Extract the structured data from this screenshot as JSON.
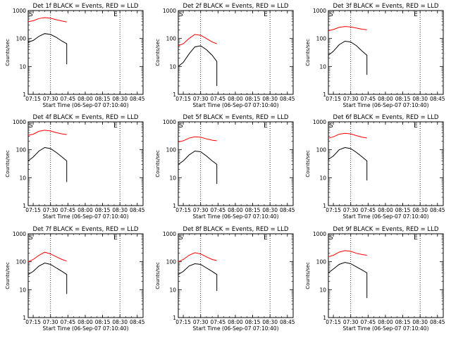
{
  "chart_data": [
    {
      "type": "line",
      "title": "Det 1f BLACK = Events, RED = LLD",
      "markers": [
        "S",
        "E"
      ],
      "xlabel": "Start Time (06-Sep-07 07:10:40)",
      "ylabel": "Counts/sec",
      "x_tick_labels": [
        "07:15",
        "07:30",
        "07:45",
        "08:00",
        "08:15",
        "08:30",
        "08:45"
      ],
      "y_tick_labels": [
        "1",
        "10",
        "100",
        "1000"
      ],
      "yscale": "log",
      "ylim": [
        1,
        1000
      ],
      "xlim": [
        "07:10:40",
        "08:50"
      ],
      "vlines": [
        "07:30",
        "08:30"
      ],
      "series": [
        {
          "color": "#000000",
          "x": [
            "07:10:40",
            "07:15",
            "07:20",
            "07:25",
            "07:30",
            "07:35",
            "07:40",
            "07:44",
            "07:44"
          ],
          "values": [
            75,
            85,
            120,
            150,
            140,
            110,
            80,
            65,
            12
          ]
        },
        {
          "color": "#ff0000",
          "x": [
            "07:10:40",
            "07:15",
            "07:20",
            "07:25",
            "07:30",
            "07:35",
            "07:40",
            "07:44"
          ],
          "values": [
            400,
            430,
            520,
            560,
            530,
            470,
            420,
            390
          ]
        }
      ]
    },
    {
      "type": "line",
      "title": "Det 2f BLACK = Events, RED = LLD",
      "markers": [
        "S",
        "E"
      ],
      "xlabel": "Start Time (06-Sep-07 07:10:40)",
      "ylabel": "Counts/sec",
      "x_tick_labels": [
        "07:15",
        "07:30",
        "07:45",
        "08:00",
        "08:15",
        "08:30",
        "08:45"
      ],
      "y_tick_labels": [
        "1",
        "10",
        "100",
        "1000"
      ],
      "yscale": "log",
      "ylim": [
        1,
        1000
      ],
      "xlim": [
        "07:10:40",
        "08:50"
      ],
      "vlines": [
        "07:30",
        "08:30"
      ],
      "series": [
        {
          "color": "#000000",
          "x": [
            "07:10:40",
            "07:15",
            "07:20",
            "07:25",
            "07:30",
            "07:35",
            "07:40",
            "07:44",
            "07:44"
          ],
          "values": [
            10,
            14,
            28,
            50,
            55,
            40,
            25,
            15,
            2
          ]
        },
        {
          "color": "#ff0000",
          "x": [
            "07:10:40",
            "07:15",
            "07:20",
            "07:25",
            "07:30",
            "07:35",
            "07:40",
            "07:44"
          ],
          "values": [
            55,
            65,
            100,
            140,
            130,
            100,
            75,
            65
          ]
        }
      ]
    },
    {
      "type": "line",
      "title": "Det 3f BLACK = Events, RED = LLD",
      "markers": [
        "S",
        "E"
      ],
      "xlabel": "Start Time (06-Sep-07 07:10:40)",
      "ylabel": "Counts/sec",
      "x_tick_labels": [
        "07:15",
        "07:30",
        "07:45",
        "08:00",
        "08:15",
        "08:30",
        "08:45"
      ],
      "y_tick_labels": [
        "1",
        "10",
        "100",
        "1000"
      ],
      "yscale": "log",
      "ylim": [
        1,
        1000
      ],
      "xlim": [
        "07:10:40",
        "08:50"
      ],
      "vlines": [
        "07:30",
        "08:30"
      ],
      "series": [
        {
          "color": "#000000",
          "x": [
            "07:10:40",
            "07:15",
            "07:20",
            "07:25",
            "07:30",
            "07:35",
            "07:40",
            "07:44",
            "07:44"
          ],
          "values": [
            25,
            35,
            60,
            80,
            75,
            55,
            35,
            25,
            5
          ]
        },
        {
          "color": "#ff0000",
          "x": [
            "07:10:40",
            "07:15",
            "07:20",
            "07:25",
            "07:30",
            "07:35",
            "07:40",
            "07:44"
          ],
          "values": [
            190,
            210,
            250,
            270,
            260,
            235,
            215,
            205
          ]
        }
      ]
    },
    {
      "type": "line",
      "title": "Det 4f BLACK = Events, RED = LLD",
      "markers": [
        "S",
        "E"
      ],
      "xlabel": "Start Time (06-Sep-07 07:10:40)",
      "ylabel": "Counts/sec",
      "x_tick_labels": [
        "07:15",
        "07:30",
        "07:45",
        "08:00",
        "08:15",
        "08:30",
        "08:45"
      ],
      "y_tick_labels": [
        "1",
        "10",
        "100",
        "1000"
      ],
      "yscale": "log",
      "ylim": [
        1,
        1000
      ],
      "xlim": [
        "07:10:40",
        "08:50"
      ],
      "vlines": [
        "07:30",
        "08:30"
      ],
      "series": [
        {
          "color": "#000000",
          "x": [
            "07:10:40",
            "07:15",
            "07:20",
            "07:25",
            "07:30",
            "07:35",
            "07:40",
            "07:44",
            "07:44"
          ],
          "values": [
            40,
            55,
            90,
            120,
            110,
            80,
            55,
            40,
            7
          ]
        },
        {
          "color": "#ff0000",
          "x": [
            "07:10:40",
            "07:15",
            "07:20",
            "07:25",
            "07:30",
            "07:35",
            "07:40",
            "07:44"
          ],
          "values": [
            330,
            360,
            460,
            500,
            470,
            410,
            370,
            350
          ]
        }
      ]
    },
    {
      "type": "line",
      "title": "Det 5f BLACK = Events, RED = LLD",
      "markers": [
        "S",
        "E"
      ],
      "xlabel": "Start Time (06-Sep-07 07:10:40)",
      "ylabel": "Counts/sec",
      "x_tick_labels": [
        "07:15",
        "07:30",
        "07:45",
        "08:00",
        "08:15",
        "08:30",
        "08:45"
      ],
      "y_tick_labels": [
        "1",
        "10",
        "100",
        "1000"
      ],
      "yscale": "log",
      "ylim": [
        1,
        1000
      ],
      "xlim": [
        "07:10:40",
        "08:50"
      ],
      "vlines": [
        "07:30",
        "08:30"
      ],
      "series": [
        {
          "color": "#000000",
          "x": [
            "07:10:40",
            "07:15",
            "07:20",
            "07:25",
            "07:30",
            "07:35",
            "07:40",
            "07:44",
            "07:44"
          ],
          "values": [
            30,
            40,
            65,
            90,
            85,
            60,
            40,
            30,
            6
          ]
        },
        {
          "color": "#ff0000",
          "x": [
            "07:10:40",
            "07:15",
            "07:20",
            "07:25",
            "07:30",
            "07:35",
            "07:40",
            "07:44"
          ],
          "values": [
            190,
            210,
            260,
            290,
            280,
            245,
            220,
            210
          ]
        }
      ]
    },
    {
      "type": "line",
      "title": "Det 6f BLACK = Events, RED = LLD",
      "markers": [
        "S",
        "E"
      ],
      "xlabel": "Start Time (06-Sep-07 07:10:40)",
      "ylabel": "Counts/sec",
      "x_tick_labels": [
        "07:15",
        "07:30",
        "07:45",
        "08:00",
        "08:15",
        "08:30",
        "08:45"
      ],
      "y_tick_labels": [
        "1",
        "10",
        "100",
        "1000"
      ],
      "yscale": "log",
      "ylim": [
        1,
        1000
      ],
      "xlim": [
        "07:10:40",
        "08:50"
      ],
      "vlines": [
        "07:30",
        "08:30"
      ],
      "series": [
        {
          "color": "#000000",
          "x": [
            "07:10:40",
            "07:15",
            "07:20",
            "07:25",
            "07:30",
            "07:35",
            "07:40",
            "07:44",
            "07:44"
          ],
          "values": [
            45,
            60,
            100,
            120,
            110,
            80,
            55,
            40,
            8
          ]
        },
        {
          "color": "#ff0000",
          "x": [
            "07:10:40",
            "07:15",
            "07:20",
            "07:25",
            "07:30",
            "07:35",
            "07:40",
            "07:44"
          ],
          "values": [
            260,
            290,
            360,
            390,
            370,
            320,
            280,
            265
          ]
        }
      ]
    },
    {
      "type": "line",
      "title": "Det 7f BLACK = Events, RED = LLD",
      "markers": [
        "S",
        "E"
      ],
      "xlabel": "Start Time (06-Sep-07 07:10:40)",
      "ylabel": "Counts/sec",
      "x_tick_labels": [
        "07:15",
        "07:30",
        "07:45",
        "08:00",
        "08:15",
        "08:30",
        "08:45"
      ],
      "y_tick_labels": [
        "1",
        "10",
        "100",
        "1000"
      ],
      "yscale": "log",
      "ylim": [
        1,
        1000
      ],
      "xlim": [
        "07:10:40",
        "08:50"
      ],
      "vlines": [
        "07:30",
        "08:30"
      ],
      "series": [
        {
          "color": "#000000",
          "x": [
            "07:10:40",
            "07:15",
            "07:20",
            "07:25",
            "07:30",
            "07:35",
            "07:40",
            "07:44",
            "07:44"
          ],
          "values": [
            35,
            45,
            70,
            90,
            80,
            60,
            45,
            35,
            7
          ]
        },
        {
          "color": "#ff0000",
          "x": [
            "07:10:40",
            "07:15",
            "07:20",
            "07:25",
            "07:30",
            "07:35",
            "07:40",
            "07:44"
          ],
          "values": [
            100,
            120,
            170,
            220,
            190,
            150,
            120,
            105
          ]
        }
      ]
    },
    {
      "type": "line",
      "title": "Det 8f BLACK = Events, RED = LLD",
      "markers": [
        "S",
        "E"
      ],
      "xlabel": "Start Time (06-Sep-07 07:10:40)",
      "ylabel": "Counts/sec",
      "x_tick_labels": [
        "07:15",
        "07:30",
        "07:45",
        "08:00",
        "08:15",
        "08:30",
        "08:45"
      ],
      "y_tick_labels": [
        "1",
        "10",
        "100",
        "1000"
      ],
      "yscale": "log",
      "ylim": [
        1,
        1000
      ],
      "xlim": [
        "07:10:40",
        "08:50"
      ],
      "vlines": [
        "07:30",
        "08:30"
      ],
      "series": [
        {
          "color": "#000000",
          "x": [
            "07:10:40",
            "07:15",
            "07:20",
            "07:25",
            "07:30",
            "07:35",
            "07:40",
            "07:44",
            "07:44"
          ],
          "values": [
            35,
            45,
            70,
            85,
            80,
            60,
            45,
            35,
            9
          ]
        },
        {
          "color": "#ff0000",
          "x": [
            "07:10:40",
            "07:15",
            "07:20",
            "07:25",
            "07:30",
            "07:35",
            "07:40",
            "07:44"
          ],
          "values": [
            100,
            120,
            170,
            210,
            190,
            150,
            120,
            110
          ]
        }
      ]
    },
    {
      "type": "line",
      "title": "Det 9f BLACK = Events, RED = LLD",
      "markers": [
        "S",
        "E"
      ],
      "xlabel": "Start Time (06-Sep-07 07:10:40)",
      "ylabel": "Counts/sec",
      "x_tick_labels": [
        "07:15",
        "07:30",
        "07:45",
        "08:00",
        "08:15",
        "08:30",
        "08:45"
      ],
      "y_tick_labels": [
        "1",
        "10",
        "100",
        "1000"
      ],
      "yscale": "log",
      "ylim": [
        1,
        1000
      ],
      "xlim": [
        "07:10:40",
        "08:50"
      ],
      "vlines": [
        "07:30",
        "08:30"
      ],
      "series": [
        {
          "color": "#000000",
          "x": [
            "07:10:40",
            "07:15",
            "07:20",
            "07:25",
            "07:30",
            "07:35",
            "07:40",
            "07:44",
            "07:44"
          ],
          "values": [
            40,
            55,
            80,
            95,
            85,
            65,
            50,
            40,
            5
          ]
        },
        {
          "color": "#ff0000",
          "x": [
            "07:10:40",
            "07:15",
            "07:20",
            "07:25",
            "07:30",
            "07:35",
            "07:40",
            "07:44"
          ],
          "values": [
            150,
            170,
            220,
            250,
            235,
            200,
            180,
            170
          ]
        }
      ]
    }
  ]
}
